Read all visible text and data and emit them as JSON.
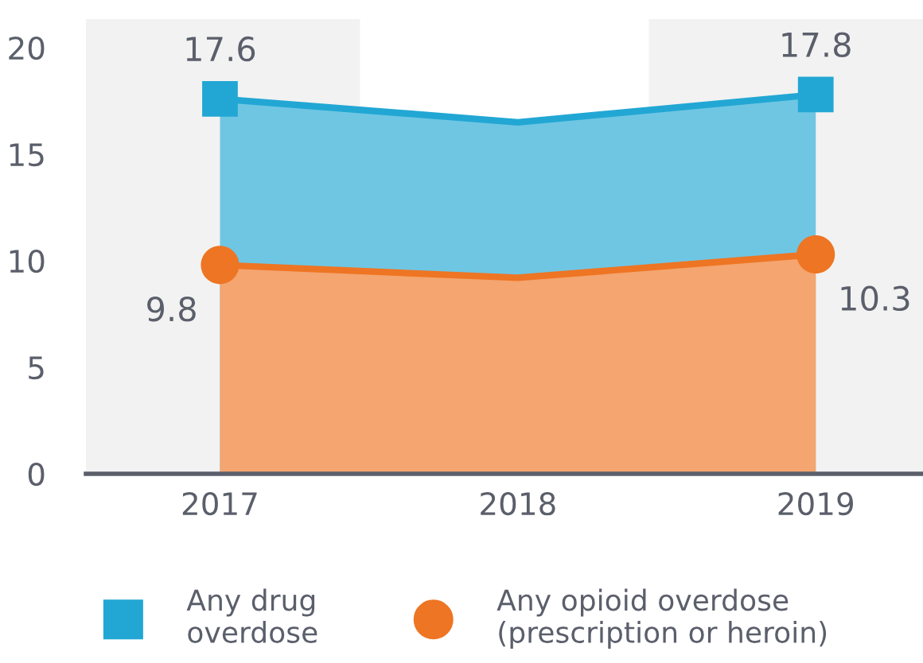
{
  "chart_data": {
    "type": "area",
    "x": [
      2017,
      2018,
      2019
    ],
    "series": [
      {
        "color": "#22a7d4",
        "values": [
          17.6,
          16.5,
          17.8
        ]
      },
      {
        "color": "#ee7523",
        "values": [
          9.8,
          9.2,
          10.3
        ]
      },
      {
        "type": "scatter",
        "name": "Any drug\noverdose",
        "color": "#22a7d4",
        "marker": "square",
        "values": [
          17.6,
          null,
          17.8
        ],
        "value_labels": [
          "17.6",
          null,
          "17.8"
        ]
      },
      {
        "type": "scatter",
        "name": "Any opioid overdose\n(prescription or heroin)",
        "color": "#ee7523",
        "marker": "circle",
        "values": [
          9.8,
          null,
          10.3
        ],
        "value_labels": [
          "9.8",
          null,
          "10.3"
        ]
      }
    ],
    "xlim": [
      2016.55,
      2019.36
    ],
    "xticks": [
      2017,
      2018,
      2019
    ],
    "ylim": [
      0,
      20
    ],
    "yticks": [
      0,
      5,
      10,
      15,
      20
    ],
    "bands": [
      {
        "axis": "x",
        "from": 2016.55,
        "to": 2017.47,
        "color": "#f2f2f2"
      },
      {
        "axis": "x",
        "from": 2018.44,
        "to": 2019.36,
        "color": "#f2f2f2"
      }
    ],
    "grid": false,
    "legend": "bottom"
  }
}
